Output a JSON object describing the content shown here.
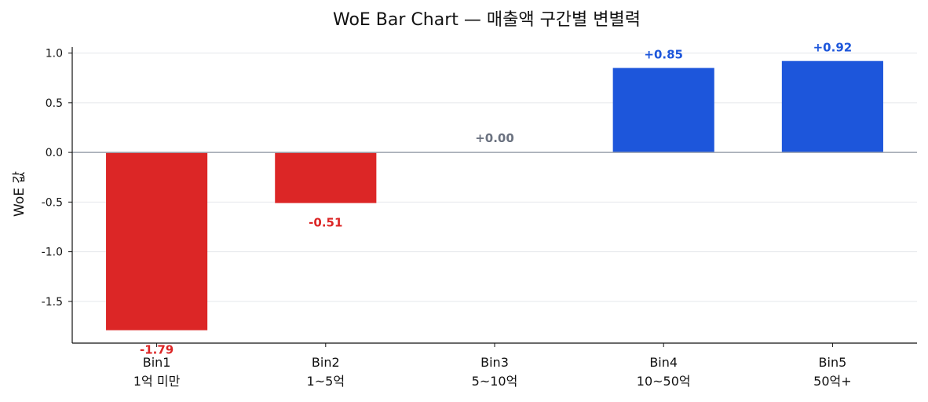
{
  "chart_data": {
    "type": "bar",
    "title": "WoE Bar Chart — 매출액 구간별 변별력",
    "ylabel": "WoE 값",
    "xlabel": "",
    "categories": [
      {
        "bin": "Bin1",
        "range": "1억 미만"
      },
      {
        "bin": "Bin2",
        "range": "1~5억"
      },
      {
        "bin": "Bin3",
        "range": "5~10억"
      },
      {
        "bin": "Bin4",
        "range": "10~50억"
      },
      {
        "bin": "Bin5",
        "range": "50억+"
      }
    ],
    "values": [
      -1.79,
      -0.51,
      0.0,
      0.85,
      0.92
    ],
    "value_labels": [
      "-1.79",
      "-0.51",
      "+0.00",
      "+0.85",
      "+0.92"
    ],
    "ylim": [
      -1.92,
      1.06
    ],
    "yticks": [
      1.0,
      0.5,
      0.0,
      -0.5,
      -1.0,
      -1.5
    ],
    "ytick_labels": [
      "1.0",
      "0.5",
      "0.0",
      "-0.5",
      "-1.0",
      "-1.5"
    ],
    "grid": "horizontal",
    "colors": {
      "negative": "#dc2626",
      "positive": "#1d56db",
      "zero_label": "#6b7280",
      "zero_line": "#9ca3af",
      "grid": "#e5e7eb"
    }
  }
}
